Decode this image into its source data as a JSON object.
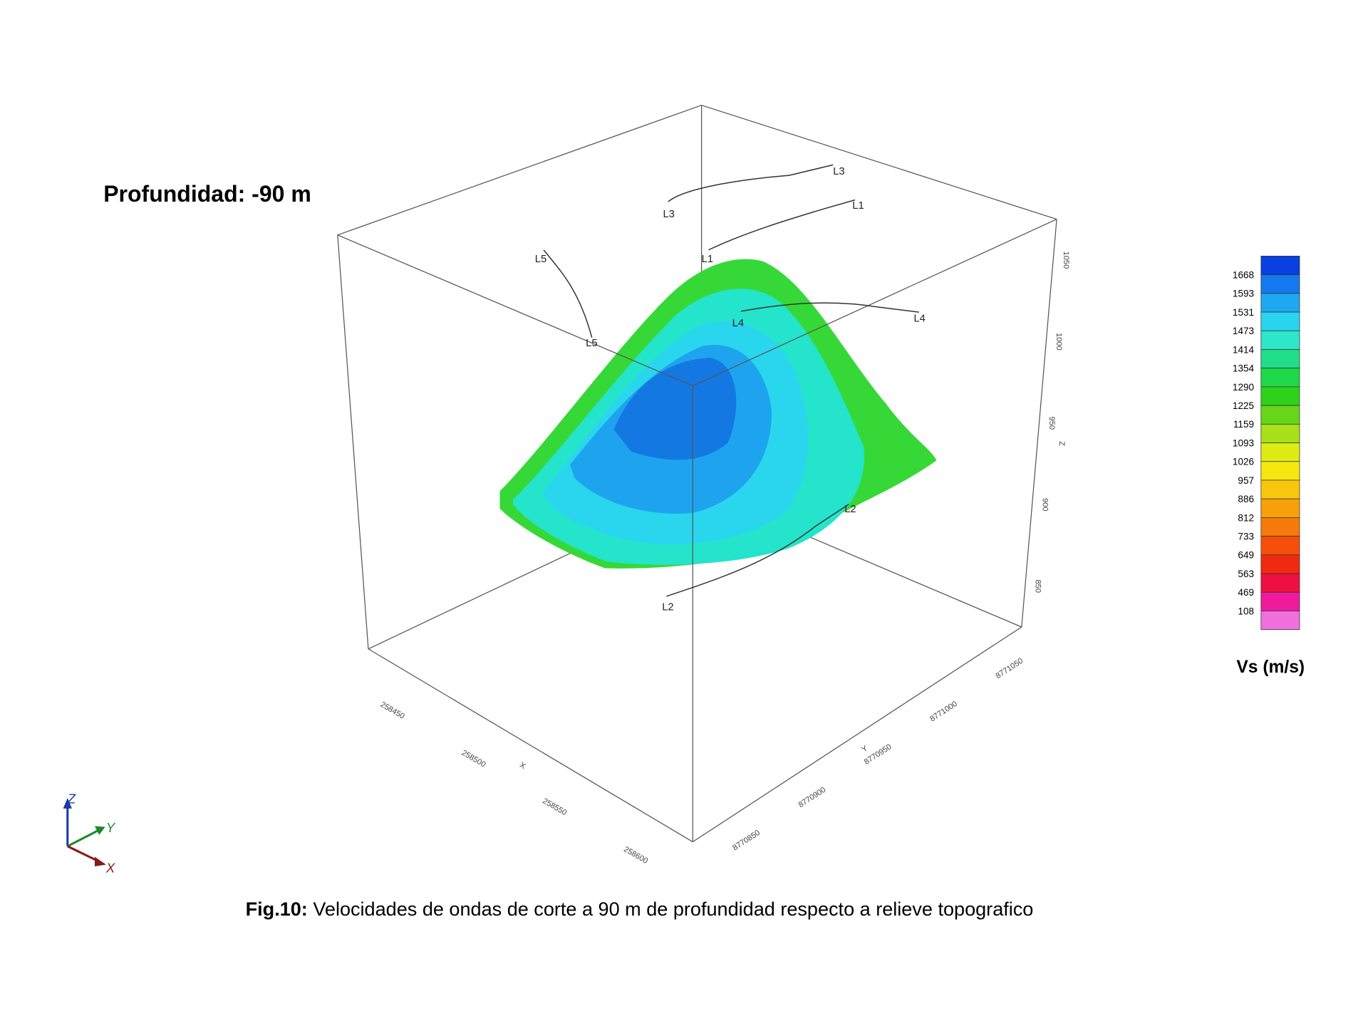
{
  "header": {
    "title": "Profundidad: -90 m"
  },
  "figure": {
    "survey_lines": [
      {
        "start": "L1",
        "end": "L1"
      },
      {
        "start": "L2",
        "end": "L2"
      },
      {
        "start": "L3",
        "end": "L3"
      },
      {
        "start": "L4",
        "end": "L4"
      },
      {
        "start": "L5",
        "end": "L5"
      }
    ],
    "x_axis": {
      "label": "X",
      "ticks": [
        "258450",
        "258500",
        "258550",
        "258600"
      ]
    },
    "y_axis": {
      "label": "Y",
      "ticks": [
        "8770850",
        "8770900",
        "8770950",
        "8771000",
        "8771050"
      ]
    },
    "z_axis": {
      "label": "Z",
      "ticks": [
        "1050",
        "1000",
        "950",
        "900",
        "850"
      ]
    },
    "triad": {
      "z": "Z",
      "y": "Y",
      "x": "X"
    }
  },
  "legend": {
    "title": "Vs (m/s)",
    "labels": [
      "1668",
      "1593",
      "1531",
      "1473",
      "1414",
      "1354",
      "1290",
      "1225",
      "1159",
      "1093",
      "1026",
      "957",
      "886",
      "812",
      "733",
      "649",
      "563",
      "469",
      "108"
    ],
    "colors": [
      "#0a3fe0",
      "#1478ee",
      "#1fa8f2",
      "#2ad4f0",
      "#2ee6c8",
      "#22dc8a",
      "#1ed84a",
      "#2fd21a",
      "#66d61a",
      "#a8e01a",
      "#dcec14",
      "#f6e80e",
      "#f8c60c",
      "#f8a00a",
      "#f67a0a",
      "#f4500c",
      "#f02a10",
      "#ee1040",
      "#f01a9c",
      "#f070dc"
    ]
  },
  "caption": {
    "label": "Fig.10:",
    "text": " Velocidades de ondas de corte a 90 m de profundidad respecto a relieve topografico"
  }
}
